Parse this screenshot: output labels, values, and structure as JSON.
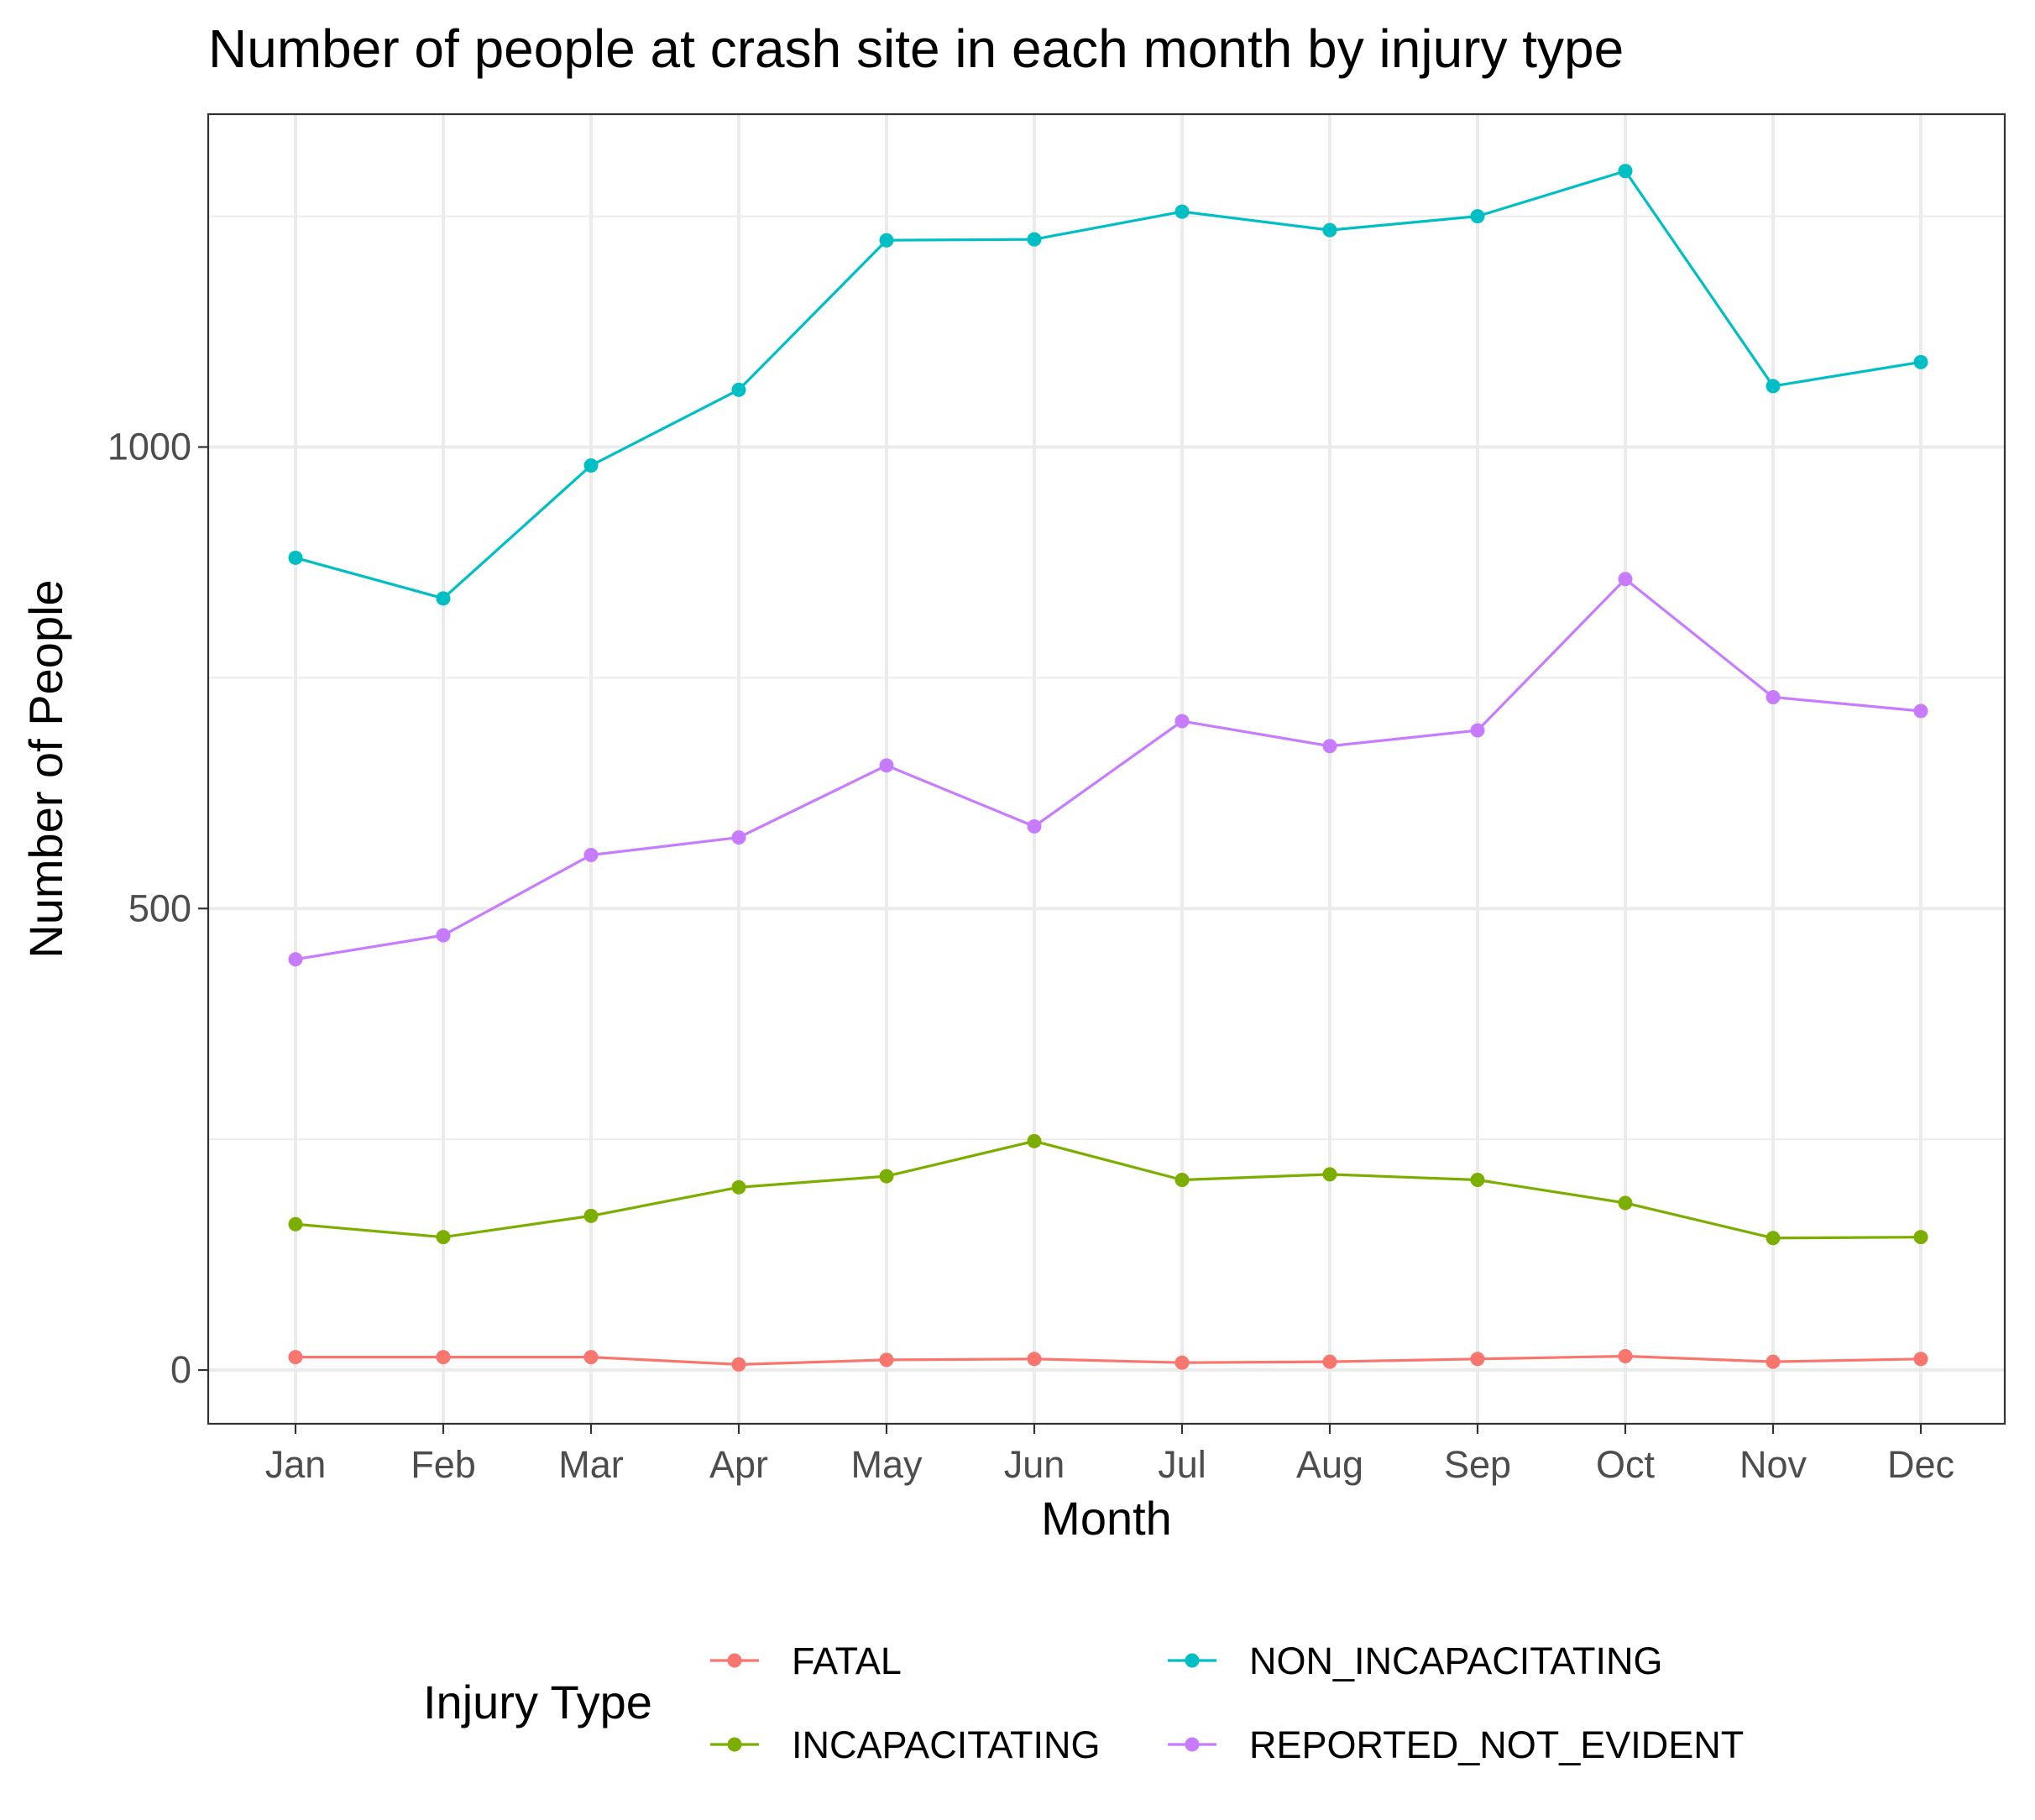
{
  "chart_data": {
    "type": "line",
    "title": "Number of people at crash site in each month by injury type",
    "xlabel": "Month",
    "ylabel": "Number of People",
    "categories": [
      "Jan",
      "Feb",
      "Mar",
      "Apr",
      "May",
      "Jun",
      "Jul",
      "Aug",
      "Sep",
      "Oct",
      "Nov",
      "Dec"
    ],
    "y_ticks": [
      0,
      500,
      1000
    ],
    "y_tick_labels": [
      "0",
      "500",
      "1000"
    ],
    "ylim": [
      -55,
      1360
    ],
    "grid": true,
    "legend": {
      "title": "Injury Type",
      "position": "bottom"
    },
    "series": [
      {
        "name": "FATAL",
        "color": "#F8766D",
        "values": [
          14,
          14,
          14,
          6,
          11,
          12,
          8,
          9,
          12,
          15,
          9,
          12
        ]
      },
      {
        "name": "INCAPACITATING",
        "color": "#7CAE00",
        "values": [
          158,
          144,
          167,
          198,
          210,
          248,
          206,
          212,
          206,
          181,
          143,
          144
        ]
      },
      {
        "name": "NON_INCAPACITATING",
        "color": "#00BFC4",
        "values": [
          880,
          836,
          980,
          1062,
          1224,
          1225,
          1255,
          1235,
          1250,
          1299,
          1066,
          1092
        ]
      },
      {
        "name": "REPORTED_NOT_EVIDENT",
        "color": "#C77CFF",
        "values": [
          445,
          471,
          558,
          577,
          655,
          589,
          703,
          676,
          693,
          857,
          729,
          714
        ]
      }
    ]
  }
}
